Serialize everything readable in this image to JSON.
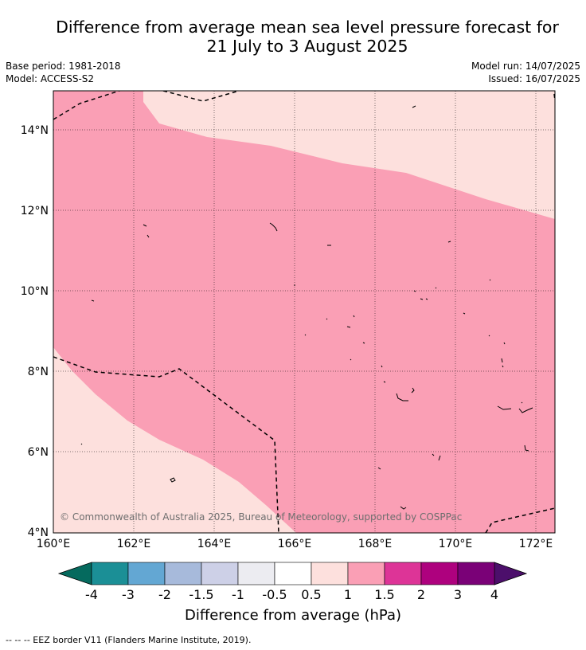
{
  "title_line1": "Difference from average mean sea level pressure forecast for",
  "title_line2": "21 July to 3 August 2025",
  "meta": {
    "base_period": "Base period: 1981-2018",
    "model": "Model: ACCESS-S2",
    "model_run": "Model run: 14/07/2025",
    "issued": "Issued: 16/07/2025"
  },
  "map": {
    "lon_ticks": [
      "160°E",
      "162°E",
      "164°E",
      "166°E",
      "168°E",
      "170°E",
      "172°E"
    ],
    "lat_ticks": [
      "14°N",
      "12°N",
      "10°N",
      "8°N",
      "6°N",
      "4°N"
    ],
    "extent": {
      "lon": [
        160,
        172.5
      ],
      "lat": [
        4,
        15
      ]
    },
    "credit": "© Commonwealth of Australia 2025, Bureau of Meteorology, supported by COSPPac"
  },
  "colorbar": {
    "label": "Difference from average (hPa)",
    "ticks": [
      "-4",
      "-3",
      "-2",
      "-1.5",
      "-1",
      "-0.5",
      "0.5",
      "1",
      "1.5",
      "2",
      "3",
      "4"
    ],
    "under_color": "#056a5e",
    "over_color": "#4c0f6b",
    "colors": [
      "#1b8f96",
      "#63a7d3",
      "#a7badb",
      "#cdd0e7",
      "#ececf1",
      "#ffffff",
      "#fde0dd",
      "#fa9fb5",
      "#dd3497",
      "#ae017e",
      "#7a0177"
    ]
  },
  "footer": "--  --  -- EEZ border V11 (Flanders Marine Institute, 2019)."
}
